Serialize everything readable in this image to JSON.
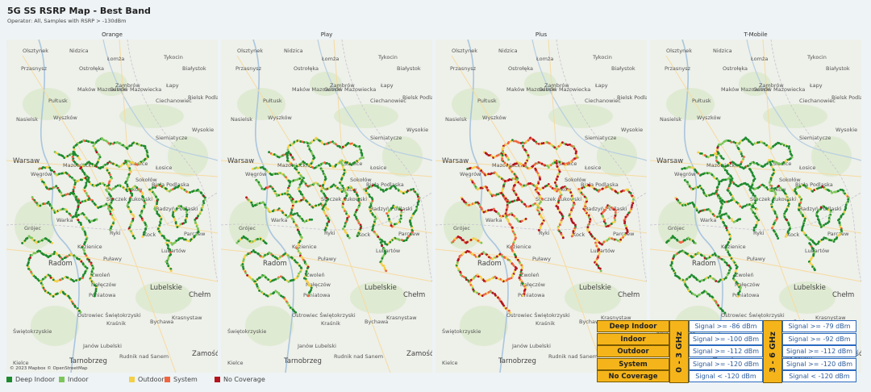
{
  "header": {
    "title": "5G SS RSRP Map - Best Band",
    "subtitle": "Operator: All, Samples with RSRP > -130dBm"
  },
  "panels": [
    {
      "title": "Orange"
    },
    {
      "title": "Play"
    },
    {
      "title": "Plus"
    },
    {
      "title": "T-Mobile"
    }
  ],
  "places": [
    {
      "name": "Olsztynek"
    },
    {
      "name": "Nidzica"
    },
    {
      "name": "Przasnysz"
    },
    {
      "name": "Ostrołęka"
    },
    {
      "name": "Łomża"
    },
    {
      "name": "Tykocin"
    },
    {
      "name": "Białystok"
    },
    {
      "name": "Zambrów"
    },
    {
      "name": "Łapy"
    },
    {
      "name": "Maków Mazowiecki"
    },
    {
      "name": "Ostrów Mazowiecka"
    },
    {
      "name": "Pułtusk"
    },
    {
      "name": "Bielsk Podlaski"
    },
    {
      "name": "Ciechanowiec"
    },
    {
      "name": "Nasielsk"
    },
    {
      "name": "Wyszków"
    },
    {
      "name": "Siemiatycze"
    },
    {
      "name": "Warsaw"
    },
    {
      "name": "Mazowieckie"
    },
    {
      "name": "Siedlce"
    },
    {
      "name": "Łosice"
    },
    {
      "name": "Sokołów"
    },
    {
      "name": "Biała Podlaska"
    },
    {
      "name": "Grójec"
    },
    {
      "name": "Stoczek Łukowski"
    },
    {
      "name": "Warka"
    },
    {
      "name": "Radzyń Podlaski"
    },
    {
      "name": "Kock"
    },
    {
      "name": "Parczew"
    },
    {
      "name": "Kozienice"
    },
    {
      "name": "Ryki"
    },
    {
      "name": "Radom"
    },
    {
      "name": "Zwoleń"
    },
    {
      "name": "Puławy"
    },
    {
      "name": "Lubartów"
    },
    {
      "name": "Nałęczów"
    },
    {
      "name": "Lubelskie"
    },
    {
      "name": "Poniatowa"
    },
    {
      "name": "Chełm"
    },
    {
      "name": "Bychawa"
    },
    {
      "name": "Krasnystaw"
    },
    {
      "name": "Ostrowiec Świętokrzyski"
    },
    {
      "name": "Kraśnik"
    },
    {
      "name": "Zamość"
    },
    {
      "name": "Świętokrzyskie"
    },
    {
      "name": "Janów Lubelski"
    },
    {
      "name": "Tarnobrzeg"
    },
    {
      "name": "Rudnik nad Sanem"
    },
    {
      "name": "Węgrów"
    },
    {
      "name": "Łuków"
    },
    {
      "name": "Wysokie"
    },
    {
      "name": "Kielce"
    }
  ],
  "attribution": "© 2023 Mapbox © OpenStreetMap",
  "legend": [
    {
      "label": "Deep Indoor",
      "color": "#1e8a2e"
    },
    {
      "label": "Indoor",
      "color": "#7dc55a"
    },
    {
      "label": "Outdoor",
      "color": "#f4cf48"
    },
    {
      "label": "System",
      "color": "#f06540"
    },
    {
      "label": "No Coverage",
      "color": "#b3141e"
    }
  ],
  "signal_legend": {
    "categories": [
      "Deep Indoor",
      "Indoor",
      "Outdoor",
      "System",
      "No Coverage"
    ],
    "band1": "0 - 3 GHz",
    "band2": "3 - 6 GHz",
    "band1_values": [
      "Signal >= -86 dBm",
      "Signal >= -100 dBm",
      "Signal >= -112 dBm",
      "Signal >= -120 dBm",
      "Signal < -120 dBm"
    ],
    "band2_values": [
      "Signal >= -79 dBm",
      "Signal >= -92 dBm",
      "Signal >= -112 dBm",
      "Signal >= -120 dBm",
      "Signal < -120 dBm"
    ]
  },
  "operator_mix": {
    "Orange": {
      "deep": 0.52,
      "indoor": 0.2,
      "outdoor": 0.18,
      "system": 0.07,
      "none": 0.03
    },
    "Play": {
      "deep": 0.47,
      "indoor": 0.22,
      "outdoor": 0.2,
      "system": 0.07,
      "none": 0.04
    },
    "Plus": {
      "deep": 0.06,
      "indoor": 0.1,
      "outdoor": 0.26,
      "system": 0.3,
      "none": 0.28
    },
    "T-Mobile": {
      "deep": 0.6,
      "indoor": 0.2,
      "outdoor": 0.13,
      "system": 0.05,
      "none": 0.02
    }
  }
}
